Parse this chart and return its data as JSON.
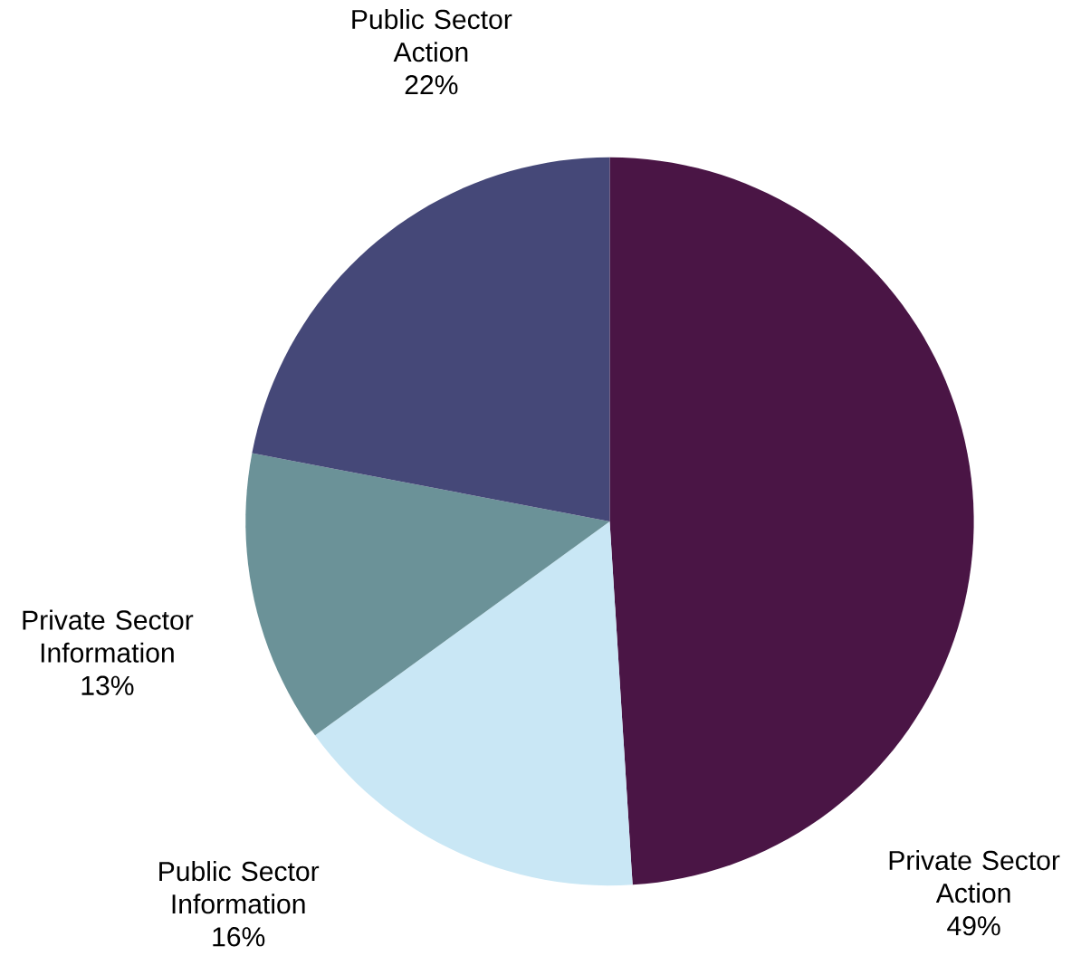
{
  "chart_data": {
    "type": "pie",
    "categories": [
      "Private Sector Action",
      "Public Sector Information",
      "Private Sector Information",
      "Public Sector Action"
    ],
    "values": [
      49,
      16,
      13,
      22
    ],
    "value_labels": [
      "49%",
      "16%",
      "13%",
      "22%"
    ],
    "colors": [
      "#4a1545",
      "#c9e7f5",
      "#6b9298",
      "#454878"
    ]
  }
}
